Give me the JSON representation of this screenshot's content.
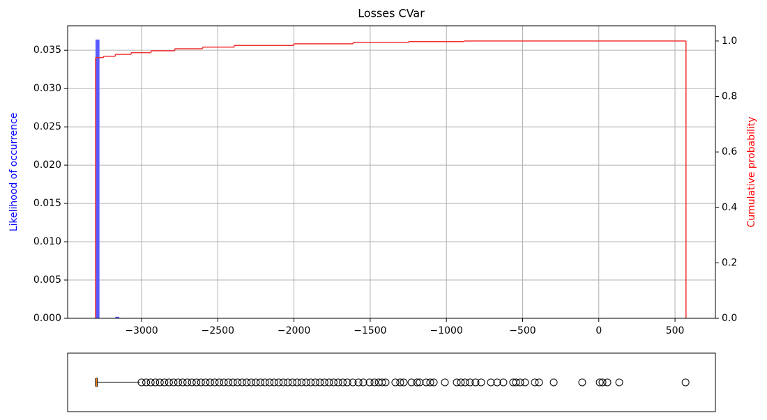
{
  "chart_data": [
    {
      "type": "histogram",
      "title": "Losses CVar",
      "y_label": "Likelihood of occurrence",
      "y2_label": "Cumulative probability",
      "xlim": [
        -3485,
        765
      ],
      "xticks": [
        {
          "value": -3000,
          "label": "−3000"
        },
        {
          "value": -2500,
          "label": "−2500"
        },
        {
          "value": -2000,
          "label": "−2000"
        },
        {
          "value": -1500,
          "label": "−1500"
        },
        {
          "value": -1000,
          "label": "−1000"
        },
        {
          "value": -500,
          "label": "−500"
        },
        0,
        500
      ],
      "ylim": [
        0,
        0.0382
      ],
      "yticks": [
        {
          "value": 0,
          "label": "0.000"
        },
        0.005,
        {
          "value": 0.01,
          "label": "0.010"
        },
        0.015,
        {
          "value": 0.02,
          "label": "0.020"
        },
        0.025,
        {
          "value": 0.03,
          "label": "0.030"
        },
        0.035
      ],
      "y2lim": [
        0,
        1.055
      ],
      "y2ticks": [
        {
          "value": 0,
          "label": "0.0"
        },
        0.2,
        0.4,
        0.6,
        0.8,
        {
          "value": 1,
          "label": "1.0"
        }
      ],
      "grid": true,
      "color": "#5a5aff",
      "bins": [
        -3302,
        -3276,
        -3250,
        -3224,
        -3198,
        -3172,
        -3146,
        -3120,
        -3094,
        -3068,
        -3042,
        -3016,
        -2990,
        -2964,
        -2938,
        -2912,
        -2886,
        -2860,
        -2834,
        -2808,
        -2782,
        -2756,
        -2730,
        -2704,
        -2678,
        -2652,
        -2626,
        -2600,
        -2574,
        -2548,
        -2522,
        -2496,
        -2470,
        -2444,
        -2418,
        -2392,
        -2366,
        -2340,
        -2314,
        -2288,
        -2262,
        -2236,
        -2210,
        -2184,
        -2158,
        -2132,
        -2106,
        -2080,
        -2054,
        -2028,
        -2002,
        -1976,
        -1950,
        -1924,
        -1898,
        -1872,
        -1846,
        -1820,
        -1794,
        -1768,
        -1742,
        -1716,
        -1690,
        -1664,
        -1638,
        -1612,
        -1586,
        -1560,
        -1534,
        -1508,
        -1482,
        -1456,
        -1430,
        -1404,
        -1378,
        -1352,
        -1326,
        -1300,
        -1274,
        -1248,
        -1222,
        -1196,
        -1170,
        -1144,
        -1118,
        -1092,
        -1066,
        -1040,
        -1014,
        -988,
        -962,
        -936,
        -910,
        -884,
        -858,
        -832,
        -806,
        -780,
        -754,
        -728,
        -702,
        -676,
        -650,
        -624,
        -598,
        -572,
        -546,
        -520,
        -494,
        -468,
        -442,
        -416,
        -390,
        -364,
        -338,
        -312,
        -286,
        -260,
        -234,
        -208,
        -182,
        -156,
        -130,
        -104,
        -78,
        -52,
        -26,
        0,
        26,
        52,
        78,
        104,
        130,
        156,
        182,
        208,
        234,
        260,
        286,
        312,
        338,
        364,
        390,
        416,
        442,
        468,
        494,
        520,
        546,
        572
      ],
      "values": [
        0.0364,
        3e-05,
        3e-05,
        3e-05,
        3e-05,
        0.0002,
        2e-05,
        2e-05,
        2e-05,
        2e-05,
        2e-05,
        2e-05,
        2e-05,
        2e-05,
        2e-05,
        2e-05,
        2e-05,
        2e-05,
        2e-05,
        2e-05,
        2e-05,
        2e-05,
        2e-05,
        2e-05,
        2e-05,
        2e-05,
        2e-05,
        2e-05,
        2e-05,
        2e-05,
        2e-05,
        2e-05,
        2e-05,
        2e-05,
        2e-05,
        2e-05,
        2e-05,
        2e-05,
        2e-05,
        2e-05,
        2e-05,
        2e-05,
        2e-05,
        2e-05,
        2e-05,
        2e-05,
        2e-05,
        2e-05,
        2e-05,
        2e-05,
        1e-05,
        1e-05,
        1e-05,
        1e-05,
        1e-05,
        1e-05,
        1e-05,
        1e-05,
        1e-05,
        1e-05,
        1e-05,
        1e-05,
        1e-05,
        1e-05,
        1e-05,
        1e-05,
        1e-05,
        1e-05,
        1e-05,
        1e-05,
        1e-05,
        1e-05,
        1e-05,
        1e-05,
        1e-05,
        1e-05,
        1e-05,
        1e-05,
        1e-05,
        1e-05,
        1e-05,
        1e-05,
        1e-05,
        1e-05,
        1e-05,
        1e-05,
        1e-05,
        1e-05,
        1e-05,
        1e-05,
        1e-05,
        1e-05,
        1e-05,
        1e-05,
        1e-05,
        1e-05,
        1e-05,
        1e-05,
        1e-05,
        1e-05,
        0,
        0,
        0,
        0,
        0,
        0,
        0,
        0,
        0,
        0,
        0,
        0,
        0,
        0,
        0,
        0,
        0,
        0,
        0,
        0,
        0,
        0,
        0,
        0,
        0,
        0,
        0,
        0,
        0,
        0,
        0,
        0,
        0,
        0,
        0,
        0,
        0,
        0,
        0,
        0,
        0,
        0,
        0,
        0,
        0,
        0,
        0,
        0,
        0
      ],
      "cumulative": {
        "color": "#f03030",
        "axis": "y2",
        "x": [
          -3302,
          -3250,
          -3172,
          -3068,
          -2938,
          -2782,
          -2600,
          -2392,
          -2002,
          -1612,
          -1248,
          -884,
          572
        ],
        "values": [
          0.94,
          0.945,
          0.952,
          0.958,
          0.965,
          0.972,
          0.978,
          0.984,
          0.99,
          0.995,
          0.998,
          1.0,
          1.0
        ]
      }
    },
    {
      "type": "boxplot",
      "xlim": [
        -3485,
        765
      ],
      "whislo": -3302,
      "q1": -3296,
      "median": -3296,
      "q3": -3290,
      "whishi": -3010,
      "median_color": "#ff7f0e",
      "outliers": [
        -3000,
        -2970,
        -2940,
        -2910,
        -2880,
        -2850,
        -2820,
        -2790,
        -2760,
        -2730,
        -2700,
        -2670,
        -2640,
        -2610,
        -2580,
        -2550,
        -2520,
        -2490,
        -2460,
        -2430,
        -2400,
        -2370,
        -2340,
        -2310,
        -2280,
        -2250,
        -2220,
        -2190,
        -2160,
        -2130,
        -2100,
        -2070,
        -2040,
        -2010,
        -1980,
        -1950,
        -1920,
        -1890,
        -1860,
        -1830,
        -1800,
        -1770,
        -1740,
        -1710,
        -1680,
        -1650,
        -1614,
        -1577,
        -1545,
        -1504,
        -1472,
        -1444,
        -1422,
        -1399,
        -1335,
        -1303,
        -1280,
        -1229,
        -1193,
        -1175,
        -1133,
        -1106,
        -1083,
        -1010,
        -932,
        -905,
        -877,
        -845,
        -809,
        -772,
        -708,
        -667,
        -626,
        -562,
        -543,
        -516,
        -484,
        -420,
        -392,
        -296,
        -109,
        6,
        24,
        56,
        134,
        569
      ]
    }
  ]
}
